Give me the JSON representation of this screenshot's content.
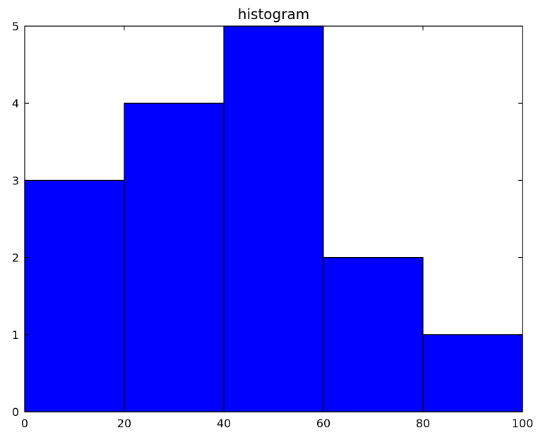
{
  "chart_data": {
    "type": "bar",
    "title": "histogram",
    "xlabel": "",
    "ylabel": "",
    "bins": [
      {
        "start": 0,
        "end": 20,
        "count": 3
      },
      {
        "start": 20,
        "end": 40,
        "count": 4
      },
      {
        "start": 40,
        "end": 60,
        "count": 5
      },
      {
        "start": 60,
        "end": 80,
        "count": 2
      },
      {
        "start": 80,
        "end": 100,
        "count": 1
      }
    ],
    "xlim": [
      0,
      100
    ],
    "ylim": [
      0,
      5
    ],
    "x_ticks": [
      0,
      20,
      40,
      60,
      80,
      100
    ],
    "y_ticks": [
      0,
      1,
      2,
      3,
      4,
      5
    ],
    "grid": false,
    "legend": "none",
    "bar_color": "#0000ff",
    "edge_color": "#000000"
  }
}
